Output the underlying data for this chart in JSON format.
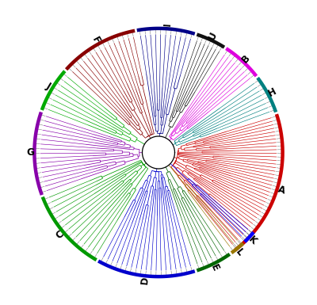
{
  "figsize": [
    4.0,
    3.85
  ],
  "dpi": 100,
  "background": "#ffffff",
  "clades": [
    {
      "label": "A",
      "color": "#cc0000",
      "theta_s": -52,
      "theta_e": 18,
      "label_theta": -17,
      "n_leaves": 40
    },
    {
      "label": "H",
      "color": "#008080",
      "theta_s": 19,
      "theta_e": 37,
      "label_theta": 28,
      "n_leaves": 8
    },
    {
      "label": "B",
      "color": "#dd00dd",
      "theta_s": 38,
      "theta_e": 57,
      "label_theta": 47,
      "n_leaves": 9
    },
    {
      "label": "U",
      "color": "#111111",
      "theta_s": 58,
      "theta_e": 72,
      "label_theta": 65,
      "n_leaves": 7
    },
    {
      "label": "I",
      "color": "#000088",
      "theta_s": 73,
      "theta_e": 100,
      "label_theta": 86,
      "n_leaves": 11
    },
    {
      "label": "F",
      "color": "#880000",
      "theta_s": 101,
      "theta_e": 138,
      "label_theta": 119,
      "n_leaves": 15
    },
    {
      "label": "J",
      "color": "#00aa00",
      "theta_s": 139,
      "theta_e": 160,
      "label_theta": 149,
      "n_leaves": 8
    },
    {
      "label": "G",
      "color": "#8800aa",
      "theta_s": 161,
      "theta_e": 200,
      "label_theta": 180,
      "n_leaves": 17
    },
    {
      "label": "C",
      "color": "#009900",
      "theta_s": 201,
      "theta_e": 240,
      "label_theta": 220,
      "n_leaves": 15
    },
    {
      "label": "D",
      "color": "#0000cc",
      "theta_s": 241,
      "theta_e": 287,
      "label_theta": 264,
      "n_leaves": 19
    },
    {
      "label": "E",
      "color": "#006600",
      "theta_s": 288,
      "theta_e": 305,
      "label_theta": 296,
      "n_leaves": 7
    },
    {
      "label": "L",
      "color": "#997700",
      "theta_s": 306,
      "theta_e": 313,
      "label_theta": 309,
      "n_leaves": 3
    },
    {
      "label": "K",
      "color": "#0000ff",
      "theta_s": 314,
      "theta_e": 320,
      "label_theta": 317,
      "n_leaves": 4
    }
  ],
  "outer_r": 1.62,
  "label_r": 1.74,
  "arc_r": 1.68,
  "root_r": 0.22
}
